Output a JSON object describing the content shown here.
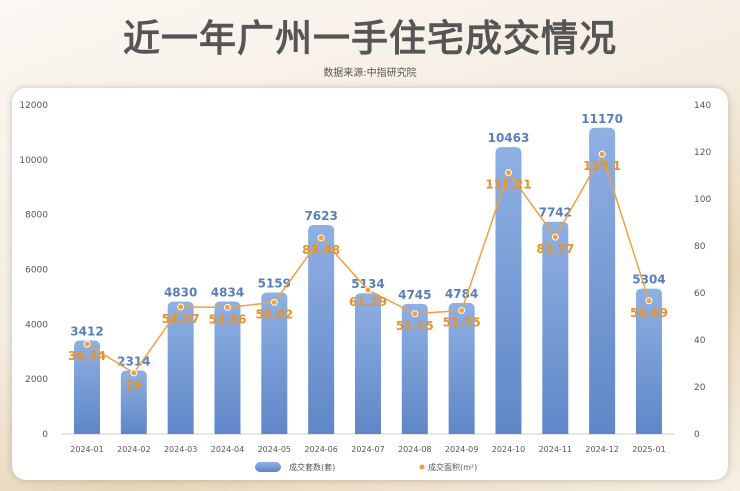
{
  "title": "近一年广州一手住宅成交情况",
  "source": "数据来源:中指研究院",
  "chart_data": {
    "type": "bar+line",
    "categories": [
      "2024-01",
      "2024-02",
      "2024-03",
      "2024-04",
      "2024-05",
      "2024-06",
      "2024-07",
      "2024-08",
      "2024-09",
      "2024-10",
      "2024-11",
      "2024-12",
      "2025-01"
    ],
    "series": [
      {
        "name": "成交套数(套)",
        "type": "bar",
        "axis": "left",
        "color": "#6f95d2",
        "values": [
          3412,
          2314,
          4830,
          4834,
          5159,
          7623,
          5134,
          4745,
          4784,
          10463,
          7742,
          11170,
          5304
        ]
      },
      {
        "name": "成交面积(m²)",
        "type": "line",
        "axis": "right",
        "color": "#f0a040",
        "values": [
          38.24,
          26,
          54.07,
          53.86,
          56.02,
          83.48,
          61.29,
          51.15,
          52.55,
          111.21,
          83.77,
          119.1,
          56.69
        ]
      }
    ],
    "ylim_left": [
      0,
      12000
    ],
    "yticks_left": [
      0,
      2000,
      4000,
      6000,
      8000,
      10000,
      12000
    ],
    "ylim_right": [
      0,
      140
    ],
    "yticks_right": [
      0,
      20,
      40,
      60,
      80,
      100,
      120,
      140
    ],
    "legend": "bottom"
  }
}
